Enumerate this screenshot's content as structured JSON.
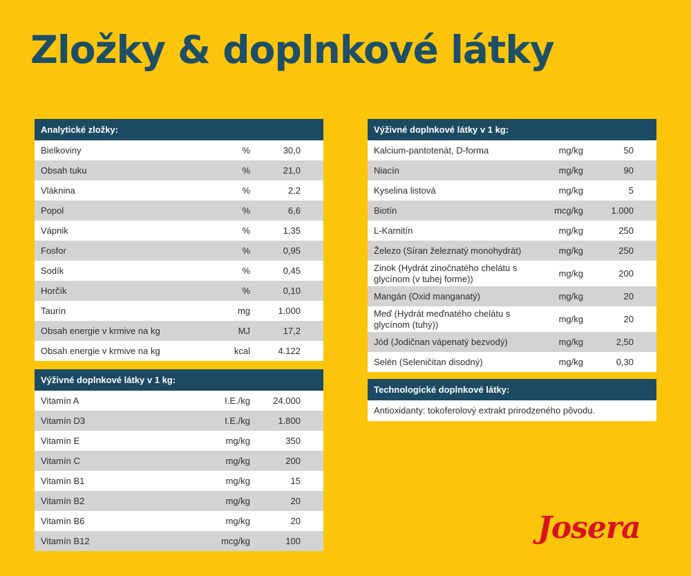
{
  "title": "Zložky & doplnkové látky",
  "brand": "Josera",
  "analytic": {
    "header": "Analytické zložky:",
    "rows": [
      {
        "name": "Bielkoviny",
        "unit": "%",
        "value": "30,0"
      },
      {
        "name": "Obsah tuku",
        "unit": "%",
        "value": "21,0"
      },
      {
        "name": "Vláknina",
        "unit": "%",
        "value": "2,2"
      },
      {
        "name": "Popol",
        "unit": "%",
        "value": "6,6"
      },
      {
        "name": "Vápnik",
        "unit": "%",
        "value": "1,35"
      },
      {
        "name": "Fosfor",
        "unit": "%",
        "value": "0,95"
      },
      {
        "name": "Sodík",
        "unit": "%",
        "value": "0,45"
      },
      {
        "name": "Horčík",
        "unit": "%",
        "value": "0,10"
      },
      {
        "name": "Taurín",
        "unit": "mg",
        "value": "1.000"
      },
      {
        "name": "Obsah energie v krmive na kg",
        "unit": "MJ",
        "value": "17,2"
      },
      {
        "name": "Obsah energie v krmive na kg",
        "unit": "kcal",
        "value": "4.122"
      }
    ]
  },
  "vitamins": {
    "header": "Výživné doplnkové látky v 1 kg:",
    "rows": [
      {
        "name": "Vitamín A",
        "unit": "I.E./kg",
        "value": "24.000"
      },
      {
        "name": "Vitamín D3",
        "unit": "I.E./kg",
        "value": "1.800"
      },
      {
        "name": "Vitamín E",
        "unit": "mg/kg",
        "value": "350"
      },
      {
        "name": "Vitamín C",
        "unit": "mg/kg",
        "value": "200"
      },
      {
        "name": "Vitamín B1",
        "unit": "mg/kg",
        "value": "15"
      },
      {
        "name": "Vitamín B2",
        "unit": "mg/kg",
        "value": "20"
      },
      {
        "name": "Vitamín B6",
        "unit": "mg/kg",
        "value": "20"
      },
      {
        "name": "Vitamín B12",
        "unit": "mcg/kg",
        "value": "100"
      }
    ]
  },
  "nutritional": {
    "header": "Výživné doplnkové látky v 1 kg:",
    "rows": [
      {
        "name": "Kalcium-pantotenát, D-forma",
        "unit": "mg/kg",
        "value": "50"
      },
      {
        "name": "Niacín",
        "unit": "mg/kg",
        "value": "90"
      },
      {
        "name": "Kyselina listová",
        "unit": "mg/kg",
        "value": "5"
      },
      {
        "name": "Biotín",
        "unit": "mcg/kg",
        "value": "1.000"
      },
      {
        "name": "L-Karnitín",
        "unit": "mg/kg",
        "value": "250"
      },
      {
        "name": "Železo (Síran železnatý monohydrát)",
        "unit": "mg/kg",
        "value": "250"
      },
      {
        "name": "Zinok (Hydrát zinočnatého chelátu s glycínom (v tuhej forme))",
        "unit": "mg/kg",
        "value": "200",
        "tall": true
      },
      {
        "name": "Mangán (Oxid manganatý)",
        "unit": "mg/kg",
        "value": "20"
      },
      {
        "name": "Meď (Hydrát meďnatého chelátu s glycínom (tuhý))",
        "unit": "mg/kg",
        "value": "20",
        "tall": true
      },
      {
        "name": "Jód (Jodičnan vápenatý bezvodý)",
        "unit": "mg/kg",
        "value": "2,50"
      },
      {
        "name": "Selén (Seleničitan disodný)",
        "unit": "mg/kg",
        "value": "0,30"
      }
    ]
  },
  "technological": {
    "header": "Technologické doplnkové látky:",
    "text": "Antioxidanty: tokoferolový extrakt prirodzeného pôvodu."
  }
}
